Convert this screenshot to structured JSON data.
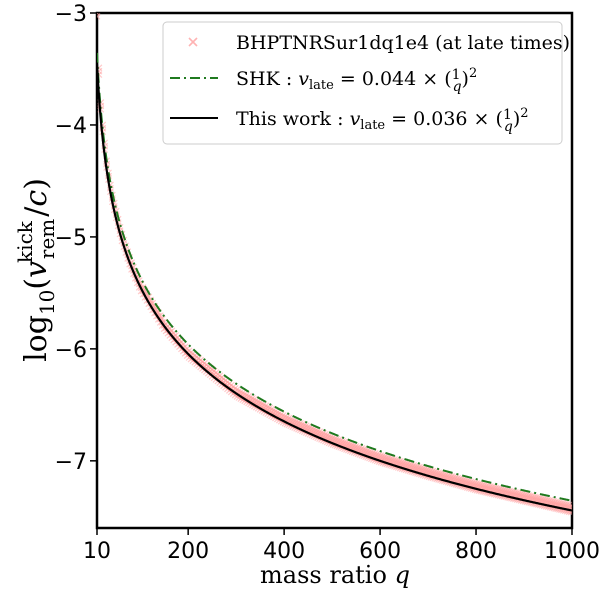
{
  "chart_data": {
    "type": "line",
    "xlabel": "mass ratio q",
    "ylabel": "log10(v_rem^kick / c)",
    "xlim": [
      10,
      1000
    ],
    "ylim": [
      -7.6,
      -3
    ],
    "x_ticks": [
      10,
      200,
      400,
      600,
      800,
      1000
    ],
    "x_tick_labels": [
      "10",
      "200",
      "400",
      "600",
      "800",
      "1000"
    ],
    "y_ticks": [
      -7,
      -6,
      -5,
      -4,
      -3
    ],
    "y_tick_labels": [
      "−7",
      "−6",
      "−5",
      "−4",
      "−3"
    ],
    "legend_position": "top-right",
    "grid": false,
    "series": [
      {
        "name": "BHPTNRSur1dq1e4 (at late times)",
        "kind": "scatter",
        "marker": "x",
        "color": "#ff9f9f",
        "x": [
          10,
          15,
          20,
          30,
          40,
          60,
          80,
          100,
          150,
          200,
          300,
          400,
          500,
          600,
          700,
          800,
          900,
          1000
        ],
        "y": [
          -3.0,
          -3.65,
          -3.95,
          -4.35,
          -4.62,
          -4.98,
          -5.24,
          -5.44,
          -5.79,
          -6.04,
          -6.39,
          -6.63,
          -6.82,
          -6.98,
          -7.11,
          -7.23,
          -7.33,
          -7.43
        ]
      },
      {
        "name": "SHK : v_late = 0.044 × (1/q)^2",
        "kind": "line",
        "style": "dashdot",
        "color": "#1f7a1f",
        "coefficient": 0.044
      },
      {
        "name": "This work : v_late = 0.036 × (1/q)^2",
        "kind": "line",
        "style": "solid",
        "color": "#000000",
        "coefficient": 0.036
      }
    ]
  }
}
